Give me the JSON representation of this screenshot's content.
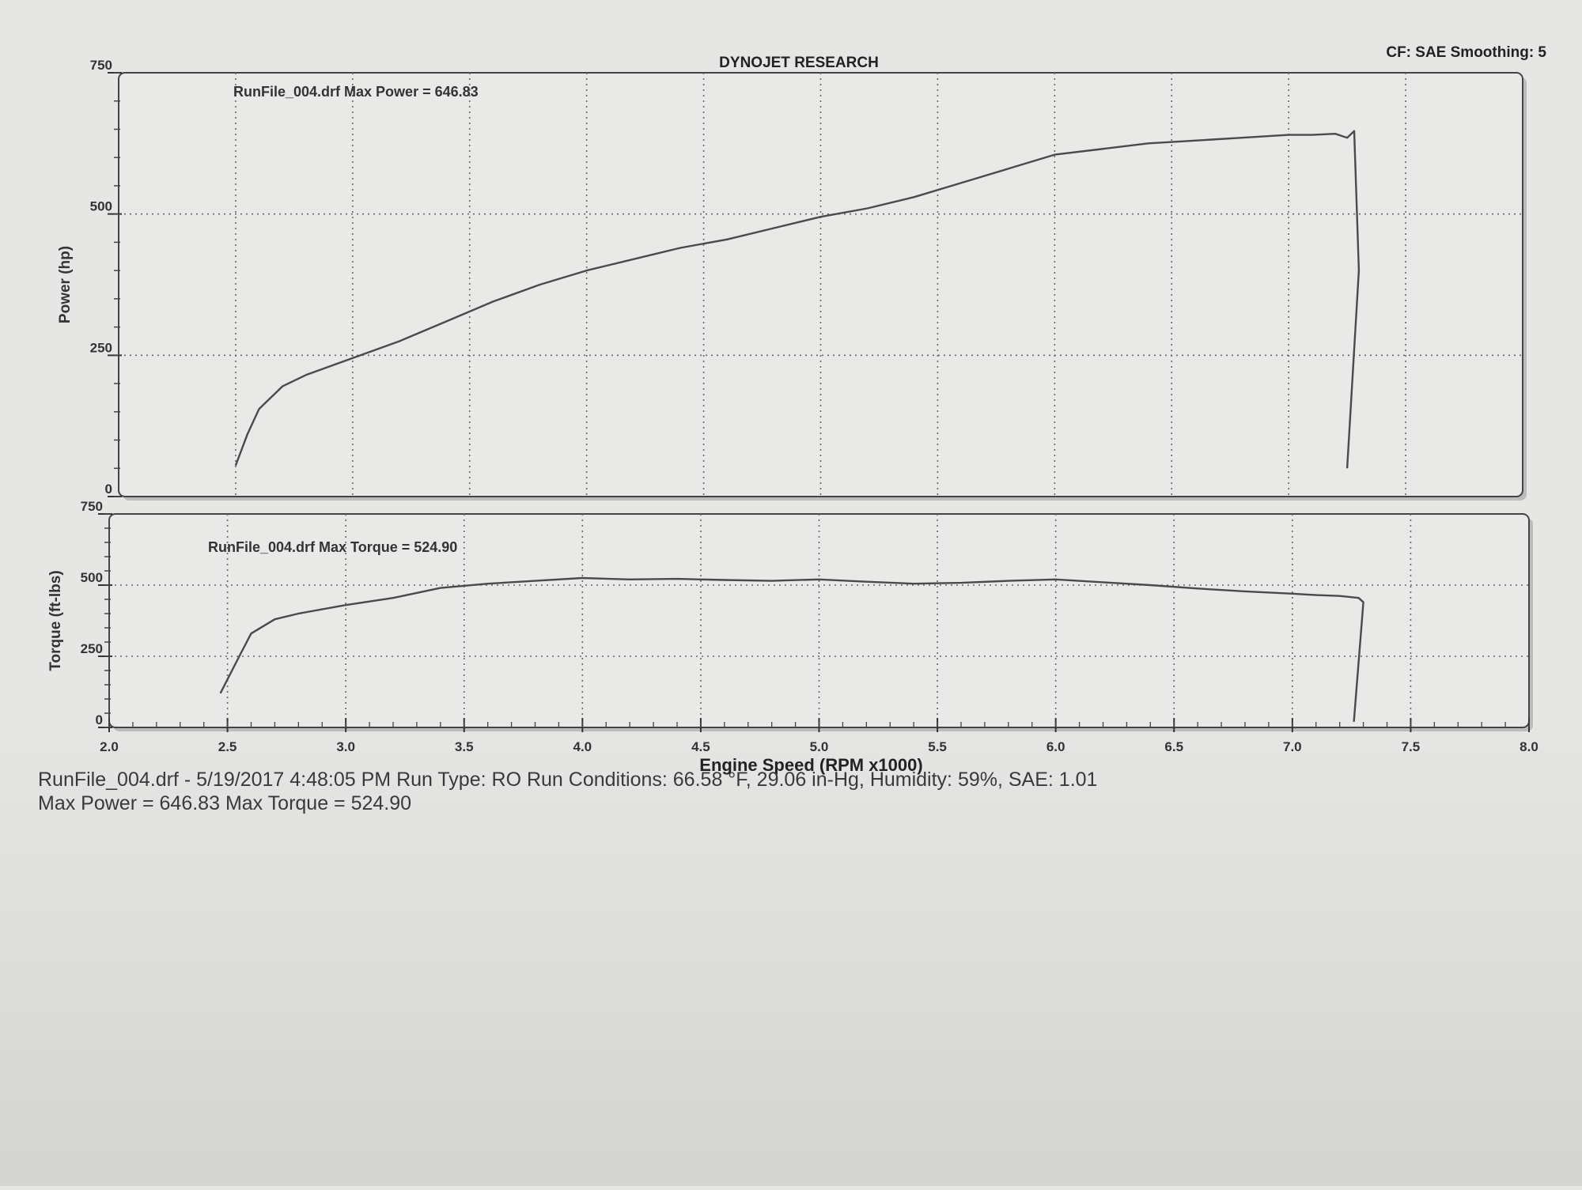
{
  "header": {
    "title": "DYNOJET RESEARCH",
    "settings": "CF: SAE  Smoothing: 5"
  },
  "chart_data": [
    {
      "type": "line",
      "ylabel": "Power (hp)",
      "xlabel": "Engine Speed (RPM x1000)",
      "xlim": [
        2.0,
        8.0
      ],
      "ylim": [
        0,
        750
      ],
      "x_ticks": [
        "2.0",
        "2.5",
        "3.0",
        "3.5",
        "4.0",
        "4.5",
        "5.0",
        "5.5",
        "6.0",
        "6.5",
        "7.0",
        "7.5",
        "8.0"
      ],
      "y_ticks": [
        "0",
        "250",
        "500",
        "750"
      ],
      "grid": true,
      "annotation": "RunFile_004.drf Max Power = 646.83",
      "series": [
        {
          "x": [
            2.5,
            2.55,
            2.6,
            2.7,
            2.8,
            3.0,
            3.2,
            3.4,
            3.6,
            3.8,
            4.0,
            4.2,
            4.4,
            4.6,
            4.8,
            5.0,
            5.2,
            5.4,
            5.6,
            5.8,
            6.0,
            6.2,
            6.4,
            6.6,
            6.8,
            7.0,
            7.1,
            7.2,
            7.25,
            7.28,
            7.3,
            7.25
          ],
          "y": [
            55,
            110,
            155,
            195,
            215,
            245,
            275,
            310,
            345,
            375,
            400,
            420,
            440,
            455,
            475,
            495,
            510,
            530,
            555,
            580,
            605,
            615,
            625,
            630,
            635,
            640,
            640,
            642,
            635,
            646.83,
            400,
            50
          ]
        }
      ]
    },
    {
      "type": "line",
      "ylabel": "Torque (ft-lbs)",
      "xlabel": "Engine Speed (RPM x1000)",
      "xlim": [
        2.0,
        8.0
      ],
      "ylim": [
        0,
        750
      ],
      "x_ticks": [
        "2.0",
        "2.5",
        "3.0",
        "3.5",
        "4.0",
        "4.5",
        "5.0",
        "5.5",
        "6.0",
        "6.5",
        "7.0",
        "7.5",
        "8.0"
      ],
      "y_ticks": [
        "0",
        "250",
        "500",
        "750"
      ],
      "grid": true,
      "annotation": "RunFile_004.drf Max Torque = 524.90",
      "series": [
        {
          "x": [
            2.47,
            2.55,
            2.6,
            2.7,
            2.8,
            3.0,
            3.2,
            3.4,
            3.6,
            3.8,
            4.0,
            4.2,
            4.4,
            4.6,
            4.8,
            5.0,
            5.2,
            5.4,
            5.6,
            5.8,
            6.0,
            6.2,
            6.4,
            6.6,
            6.8,
            7.0,
            7.1,
            7.2,
            7.28,
            7.3,
            7.26
          ],
          "y": [
            120,
            250,
            330,
            380,
            400,
            430,
            455,
            490,
            505,
            515,
            524.9,
            520,
            522,
            518,
            515,
            520,
            512,
            505,
            508,
            515,
            520,
            510,
            500,
            488,
            478,
            470,
            465,
            462,
            455,
            440,
            20
          ]
        }
      ]
    }
  ],
  "footer": {
    "line1": "RunFile_004.drf - 5/19/2017 4:48:05 PM  Run Type: RO  Run Conditions: 66.58 °F, 29.06 in-Hg,  Humidity:  59%, SAE: 1.01",
    "line2": "Max Power = 646.83  Max Torque = 524.90"
  }
}
